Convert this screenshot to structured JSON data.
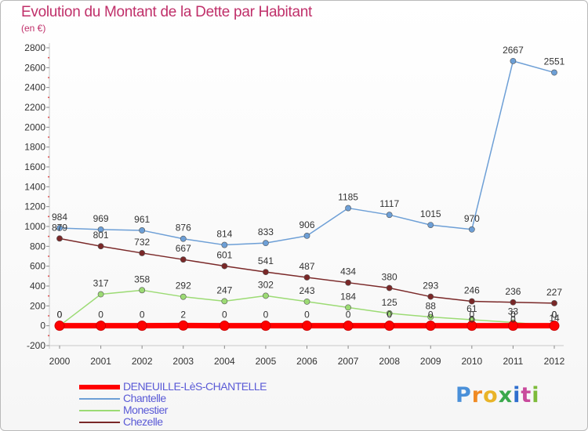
{
  "title": "Evolution du Montant de la Dette par Habitant",
  "subtitle": "(en €)",
  "logo": {
    "text": "Proxiti",
    "colors": [
      "#4a90d9",
      "#f08a24",
      "#e9b428",
      "#3aa84c",
      "#2f6fce",
      "#c94a9c",
      "#7dbb3a"
    ]
  },
  "chart_data": {
    "type": "line",
    "x": [
      "2000",
      "2001",
      "2002",
      "2003",
      "2004",
      "2005",
      "2006",
      "2007",
      "2008",
      "2009",
      "2010",
      "2011",
      "2012"
    ],
    "ylim": [
      -200,
      2800
    ],
    "yticks": [
      "-200",
      "0",
      "200",
      "400",
      "600",
      "800",
      "1000",
      "1200",
      "1400",
      "1600",
      "1800",
      "2000",
      "2200",
      "2400",
      "2600",
      "2800"
    ],
    "grid": false,
    "legend_position": "bottom-left",
    "series": [
      {
        "name": "DENEUILLE-LèS-CHANTELLE",
        "color": "#ff0000",
        "values": [
          0,
          0,
          0,
          2,
          0,
          0,
          0,
          0,
          0,
          0,
          0,
          0,
          0
        ],
        "labels": [
          "0",
          "0",
          "0",
          "2",
          "0",
          "0",
          "0",
          "0",
          "0",
          "0",
          "0",
          "0",
          "0"
        ]
      },
      {
        "name": "Chantelle",
        "color": "#6d9fd6",
        "values": [
          984,
          969,
          961,
          876,
          814,
          833,
          906,
          1185,
          1117,
          1015,
          970,
          2667,
          2551
        ],
        "labels": [
          "984",
          "969",
          "961",
          "876",
          "814",
          "833",
          "906",
          "1185",
          "1117",
          "1015",
          "970",
          "2667",
          "2551"
        ]
      },
      {
        "name": "Monestier",
        "color": "#9cdb74",
        "values": [
          0,
          317,
          358,
          292,
          247,
          302,
          243,
          184,
          125,
          88,
          61,
          33,
          0
        ],
        "labels": [
          "0",
          "317",
          "358",
          "292",
          "247",
          "302",
          "243",
          "184",
          "125",
          "88",
          "61",
          "33",
          "0"
        ]
      },
      {
        "name": "Chezelle",
        "color": "#7a2828",
        "values": [
          879,
          801,
          732,
          667,
          601,
          541,
          487,
          434,
          380,
          293,
          246,
          236,
          227
        ],
        "labels": [
          "879",
          "801",
          "732",
          "667",
          "601",
          "541",
          "487",
          "434",
          "380",
          "293",
          "246",
          "236",
          "227"
        ]
      }
    ],
    "extra_labels": [
      "0",
      "0",
      "14"
    ]
  }
}
